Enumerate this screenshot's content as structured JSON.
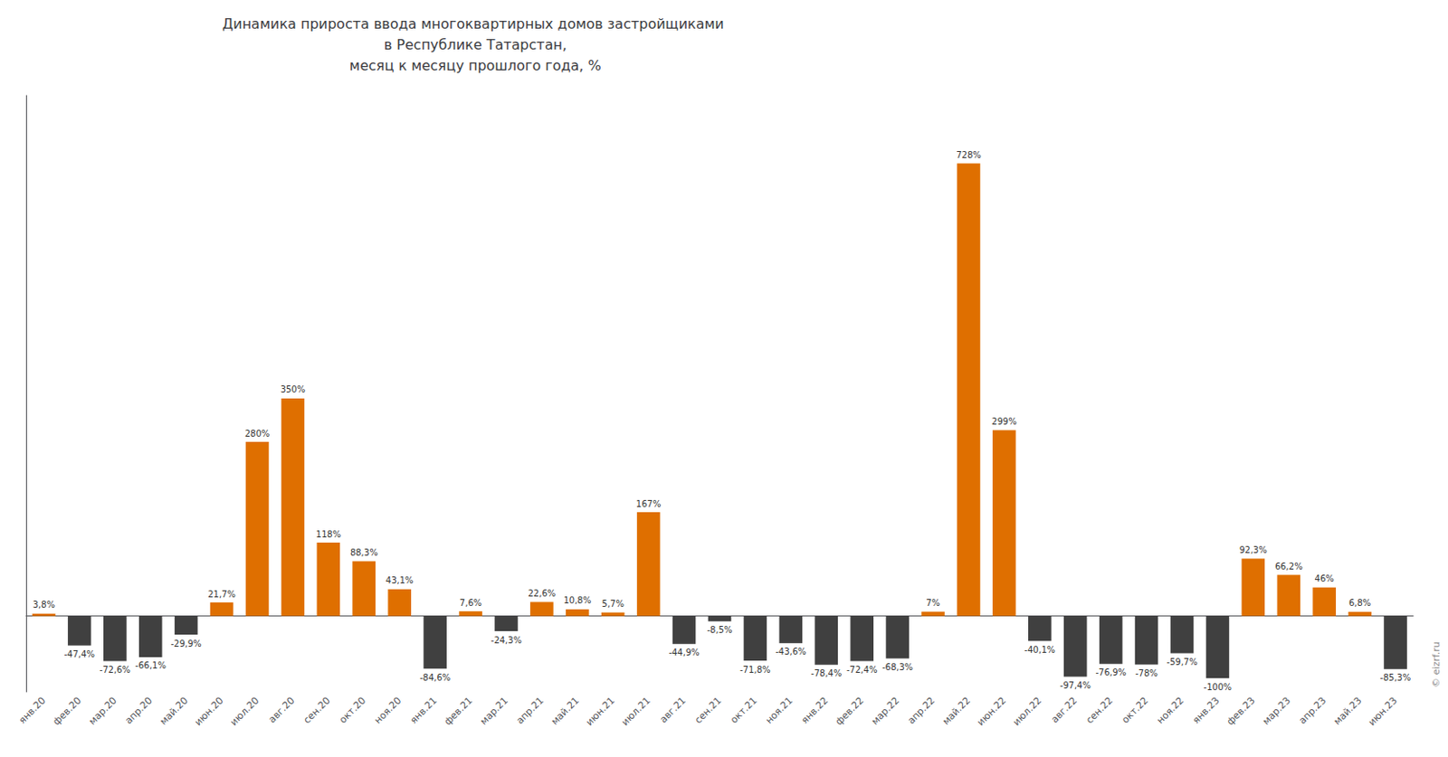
{
  "chart_data": {
    "type": "bar",
    "title": "Динамика прироста ввода многоквартирных домов застройщиками\n в Республике Татарстан,\n месяц к месяцу прошлого года, %",
    "annotations": [
      "© eizrf.ru"
    ],
    "categories": [
      "янв.20",
      "фев.20",
      "мар.20",
      "апр.20",
      "май.20",
      "июн.20",
      "июл.20",
      "авг.20",
      "сен.20",
      "окт.20",
      "ноя.20",
      "янв.21",
      "фев.21",
      "мар.21",
      "апр.21",
      "май.21",
      "июн.21",
      "июл.21",
      "авг.21",
      "сен.21",
      "окт.21",
      "ноя.21",
      "янв.22",
      "фев.22",
      "мар.22",
      "апр.22",
      "май.22",
      "июн.22",
      "июл.22",
      "авг.22",
      "сен.22",
      "окт.22",
      "ноя.22",
      "янв.23",
      "фев.23",
      "мар.23",
      "апр.23",
      "май.23",
      "июн.23"
    ],
    "values": [
      3.8,
      -47.4,
      -72.6,
      -66.1,
      -29.9,
      21.7,
      280.0,
      350.0,
      118.0,
      88.3,
      43.1,
      -84.6,
      7.6,
      -24.3,
      22.6,
      10.8,
      5.7,
      167.0,
      -44.9,
      -8.5,
      -71.8,
      -43.6,
      -78.4,
      -72.4,
      -68.3,
      7.0,
      728.0,
      299.0,
      -40.1,
      -97.4,
      -76.9,
      -78.0,
      -59.7,
      -100.0,
      92.3,
      66.2,
      46.0,
      6.8,
      -85.3
    ],
    "value_labels": [
      "3,8%",
      "-47,4%",
      "-72,6%",
      "-66,1%",
      "-29,9%",
      "21,7%",
      "280%",
      "350%",
      "118%",
      "88,3%",
      "43,1%",
      "-84,6%",
      "7,6%",
      "-24,3%",
      "22,6%",
      "10,8%",
      "5,7%",
      "167%",
      "-44,9%",
      "-8,5%",
      "-71,8%",
      "-43,6%",
      "-78,4%",
      "-72,4%",
      "-68,3%",
      "7%",
      "728%",
      "299%",
      "-40,1%",
      "-97,4%",
      "-76,9%",
      "-78%",
      "-59,7%",
      "-100%",
      "92,3%",
      "66,2%",
      "46%",
      "6,8%",
      "-85,3%"
    ],
    "colors": [
      "#df6f00",
      "#404040",
      "#404040",
      "#404040",
      "#404040",
      "#df6f00",
      "#df6f00",
      "#df6f00",
      "#df6f00",
      "#df6f00",
      "#df6f00",
      "#404040",
      "#df6f00",
      "#404040",
      "#df6f00",
      "#df6f00",
      "#df6f00",
      "#df6f00",
      "#404040",
      "#404040",
      "#404040",
      "#404040",
      "#404040",
      "#404040",
      "#404040",
      "#df6f00",
      "#df6f00",
      "#df6f00",
      "#404040",
      "#404040",
      "#404040",
      "#404040",
      "#404040",
      "#404040",
      "#df6f00",
      "#df6f00",
      "#df6f00",
      "#df6f00",
      "#404040"
    ],
    "ylim": [
      -122,
      837.2
    ],
    "grid": false,
    "data_labels": true,
    "tick_labels": "x"
  }
}
